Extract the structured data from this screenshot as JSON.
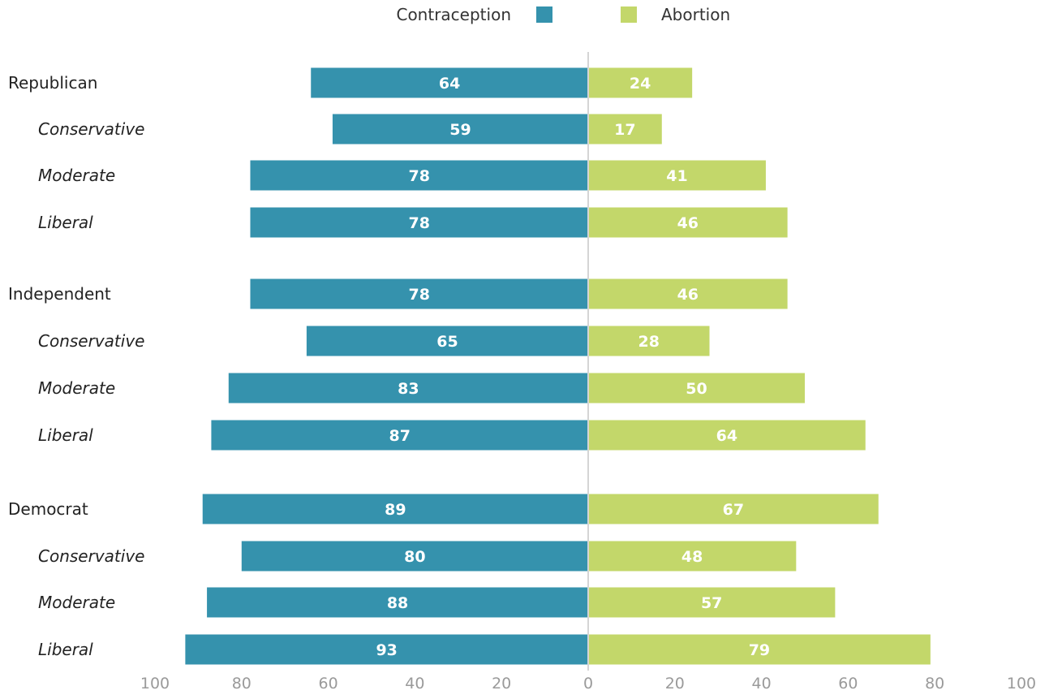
{
  "chart_data": {
    "type": "bar",
    "orientation": "diverging-horizontal",
    "categories": [
      {
        "label": "Republican",
        "level": "group"
      },
      {
        "label": "Conservative",
        "level": "sub"
      },
      {
        "label": "Moderate",
        "level": "sub"
      },
      {
        "label": "Liberal",
        "level": "sub"
      },
      {
        "label": "Independent",
        "level": "group"
      },
      {
        "label": "Conservative",
        "level": "sub"
      },
      {
        "label": "Moderate",
        "level": "sub"
      },
      {
        "label": "Liberal",
        "level": "sub"
      },
      {
        "label": "Democrat",
        "level": "group"
      },
      {
        "label": "Conservative",
        "level": "sub"
      },
      {
        "label": "Moderate",
        "level": "sub"
      },
      {
        "label": "Liberal",
        "level": "sub"
      }
    ],
    "series": [
      {
        "name": "Contraception",
        "side": "left",
        "color": "#3592ad",
        "values": [
          64,
          59,
          78,
          78,
          78,
          65,
          83,
          87,
          89,
          80,
          88,
          93
        ]
      },
      {
        "name": "Abortion",
        "side": "right",
        "color": "#c3d76a",
        "values": [
          24,
          17,
          41,
          46,
          46,
          28,
          50,
          64,
          67,
          48,
          57,
          79
        ]
      }
    ],
    "xlim": [
      -100,
      100
    ],
    "ticks": [
      {
        "value": -100,
        "label": "100"
      },
      {
        "value": -80,
        "label": "80"
      },
      {
        "value": -60,
        "label": "60"
      },
      {
        "value": -40,
        "label": "40"
      },
      {
        "value": -20,
        "label": "20"
      },
      {
        "value": 0,
        "label": "0"
      },
      {
        "value": 20,
        "label": "20"
      },
      {
        "value": 40,
        "label": "40"
      },
      {
        "value": 60,
        "label": "60"
      },
      {
        "value": 80,
        "label": "80"
      },
      {
        "value": 100,
        "label": "100"
      }
    ],
    "legend_position": "top-center",
    "grid": false,
    "axis_color": "#d5d5d5"
  }
}
